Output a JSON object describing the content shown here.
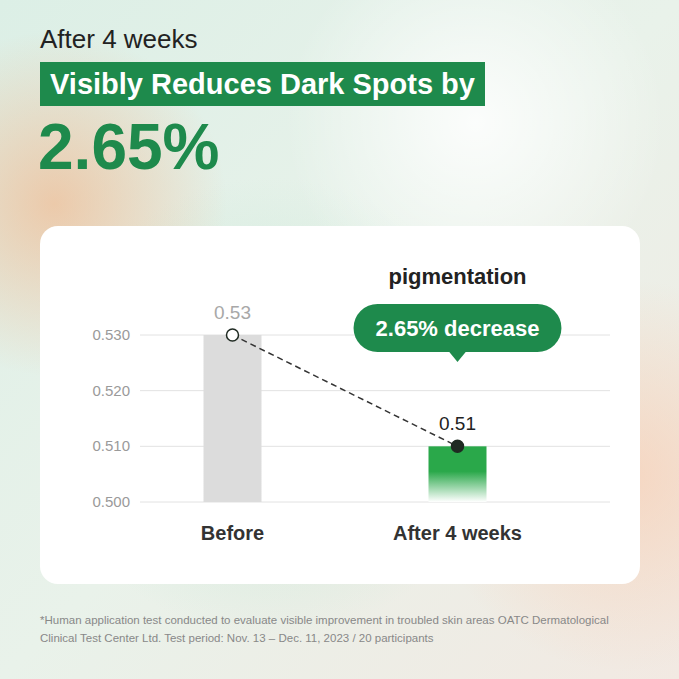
{
  "chart_data": {
    "type": "bar",
    "subtitle": "After 4 weeks",
    "title": "Visibly Reduces Dark Spots by",
    "annotations": {
      "headline": "2.65%",
      "callout_title": "pigmentation",
      "callout": "2.65% decrease",
      "footnote": "*Human application test conducted to evaluate visible improvement in troubled skin areas OATC Dermatological Clinical Test Center Ltd. Test period: Nov. 13 – Dec. 11, 2023 / 20 participants"
    },
    "categories": [
      "Before",
      "After 4 weeks"
    ],
    "values": [
      0.53,
      0.51
    ],
    "colors": [
      "#dcdcdc",
      "#2aa84a"
    ],
    "ylim": [
      0.5,
      0.53
    ],
    "yticks": [
      {
        "value": 0.5,
        "label": "0.500"
      },
      {
        "value": 0.51,
        "label": "0.510"
      },
      {
        "value": 0.52,
        "label": "0.520"
      },
      {
        "value": 0.53,
        "label": "0.530"
      }
    ],
    "grid": true,
    "data_labels": true,
    "marker": "circle",
    "line_style": "dashed"
  }
}
